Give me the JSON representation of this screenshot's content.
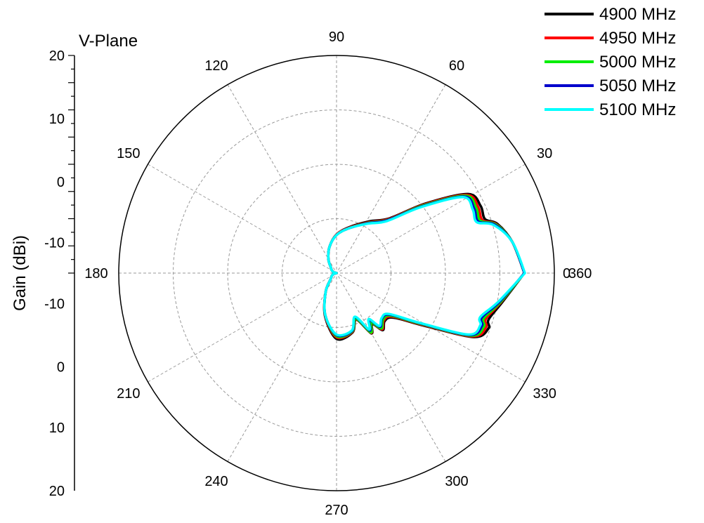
{
  "chart_data": {
    "type": "polar-line",
    "title": "V-Plane",
    "ylabel": "Gain (dBi)",
    "radial_range": [
      -20,
      20
    ],
    "radial_ticks_left_axis": [
      "20",
      "10",
      "0",
      "-10",
      "-10",
      "0",
      "10",
      "20"
    ],
    "radial_gridlines": [
      -10,
      0,
      10
    ],
    "angle_labels": [
      "0",
      "30",
      "60",
      "90",
      "120",
      "150",
      "180",
      "210",
      "240",
      "270",
      "300",
      "330",
      "360"
    ],
    "grid": true,
    "legend_position": "top-right",
    "series": [
      {
        "name": "4900 MHz",
        "color": "#000000"
      },
      {
        "name": "4950 MHz",
        "color": "#ff0000"
      },
      {
        "name": "5000 MHz",
        "color": "#00ee00"
      },
      {
        "name": "5050 MHz",
        "color": "#0000cc"
      },
      {
        "name": "5100 MHz",
        "color": "#00ffff"
      }
    ],
    "angles_deg": [
      0,
      10,
      17,
      20,
      25,
      31,
      38,
      46,
      58,
      75,
      90,
      105,
      120,
      135,
      150,
      165,
      180,
      195,
      210,
      225,
      240,
      255,
      270,
      285,
      293,
      300,
      305,
      309,
      315,
      322,
      329,
      335,
      340,
      343,
      350,
      360
    ],
    "gain_base": [
      14.5,
      12.8,
      10.5,
      7.8,
      8.0,
      7.4,
      0,
      -6.5,
      -9.2,
      -11.5,
      -13.0,
      -15.0,
      -17.0,
      -18.5,
      -19.0,
      -19.5,
      -20.0,
      -19.5,
      -19.0,
      -18.5,
      -16.0,
      -12.0,
      -8.5,
      -9.0,
      -11.0,
      -7.5,
      -9.0,
      -7.0,
      -8.0,
      -7.5,
      -2.0,
      7.0,
      8.5,
      8.0,
      10.5,
      14.5
    ],
    "series_offsets": [
      [
        0,
        0,
        0.4,
        1.2,
        1.2,
        0.8,
        0.8,
        0.5,
        0.4,
        0.2,
        0.1,
        0,
        0,
        0,
        0,
        0,
        0,
        0,
        0,
        0,
        0,
        0.2,
        0.6,
        0.3,
        0.3,
        0.3,
        0.4,
        0.5,
        0.5,
        0.8,
        0.8,
        0.8,
        1.2,
        1.2,
        0.4,
        0
      ],
      [
        0,
        0,
        0.2,
        0.7,
        0.7,
        0.5,
        0.5,
        0.3,
        0.2,
        0.1,
        0.1,
        0,
        0,
        0,
        0,
        0,
        0,
        0,
        0,
        0,
        0,
        0.1,
        0.3,
        0.2,
        0.2,
        0.2,
        0.2,
        0.3,
        0.3,
        0.5,
        0.5,
        0.5,
        0.7,
        0.7,
        0.2,
        0
      ],
      [
        0,
        0,
        0.1,
        0.3,
        0.3,
        0.2,
        0.2,
        0.1,
        0.1,
        0,
        0,
        0,
        0,
        0,
        0,
        0,
        0,
        0,
        0,
        0,
        0,
        0,
        0.1,
        0.1,
        0.1,
        0.1,
        0.1,
        0.1,
        0.1,
        0.2,
        0.2,
        0.2,
        0.3,
        0.3,
        0.1,
        0
      ],
      [
        0,
        0,
        -0.1,
        -0.1,
        -0.1,
        -0.1,
        -0.1,
        0,
        0,
        0,
        0,
        0,
        0,
        0,
        0,
        0,
        0,
        0,
        0,
        0,
        0,
        0,
        -0.1,
        0,
        -0.2,
        -0.3,
        -0.5,
        -0.3,
        -0.2,
        -0.1,
        -0.1,
        -0.1,
        -0.1,
        -0.1,
        -0.1,
        0
      ],
      [
        0.1,
        0,
        -0.3,
        -0.4,
        -0.4,
        -0.3,
        -0.3,
        -0.2,
        -0.1,
        0,
        0,
        0,
        0,
        0,
        0,
        0,
        0,
        0,
        0,
        0,
        0,
        0,
        -0.2,
        -0.1,
        -0.3,
        -0.5,
        -0.7,
        -0.5,
        -0.3,
        -0.3,
        -0.3,
        -0.3,
        -0.4,
        -0.4,
        -0.3,
        0.1
      ]
    ]
  }
}
